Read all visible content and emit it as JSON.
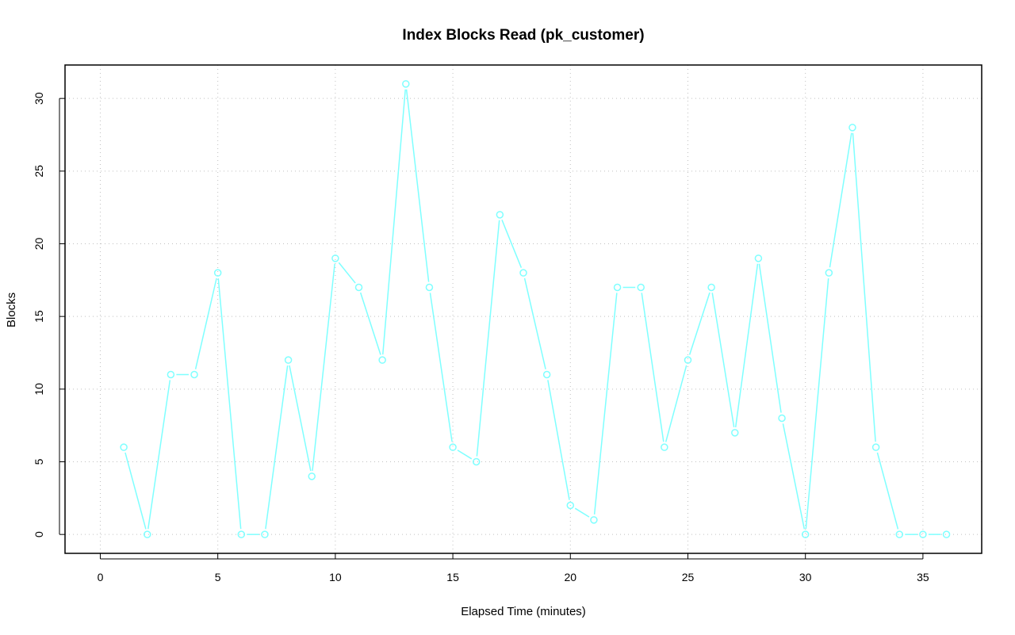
{
  "chart_data": {
    "type": "line",
    "title": "Index Blocks Read (pk_customer)",
    "xlabel": "Elapsed Time (minutes)",
    "ylabel": "Blocks",
    "xlim": [
      -1.5,
      37.5
    ],
    "ylim": [
      -1.3,
      32.3
    ],
    "x_ticks": [
      0,
      5,
      10,
      15,
      20,
      25,
      30,
      35
    ],
    "y_ticks": [
      0,
      5,
      10,
      15,
      20,
      25,
      30
    ],
    "grid": true,
    "line_color": "#7fffff",
    "series": [
      {
        "x": [
          1,
          2,
          3,
          4,
          5,
          6,
          7,
          8,
          9,
          10,
          11,
          12,
          13,
          14,
          15,
          16,
          17,
          18,
          19,
          20,
          21,
          22,
          23,
          24,
          25,
          26,
          27,
          28,
          29,
          30,
          31,
          32,
          33,
          34,
          35,
          36
        ],
        "values": [
          6,
          0,
          11,
          11,
          18,
          0,
          0,
          12,
          4,
          19,
          17,
          12,
          31,
          17,
          6,
          5,
          22,
          18,
          11,
          2,
          1,
          17,
          17,
          6,
          12,
          17,
          7,
          19,
          8,
          0,
          18,
          28,
          6,
          0,
          0,
          0
        ]
      }
    ]
  }
}
